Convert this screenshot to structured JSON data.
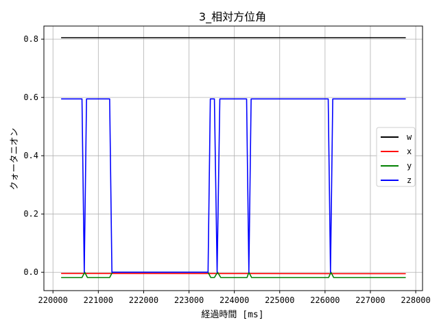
{
  "chart_data": {
    "type": "line",
    "title": "3_相対方位角",
    "xlabel": "経過時間 [ms]",
    "ylabel": "クォータニオン",
    "xlim": [
      219800,
      228150
    ],
    "ylim": [
      -0.063,
      0.845
    ],
    "xticks": [
      220000,
      221000,
      222000,
      223000,
      224000,
      225000,
      226000,
      227000,
      228000
    ],
    "yticks": [
      0.0,
      0.2,
      0.4,
      0.6,
      0.8
    ],
    "ytick_labels": [
      "0.0",
      "0.2",
      "0.4",
      "0.6",
      "0.8"
    ],
    "grid": true,
    "legend_position": "center-right",
    "series": [
      {
        "name": "w",
        "color": "#000000",
        "x": [
          220180,
          227780
        ],
        "y": [
          0.805,
          0.805
        ]
      },
      {
        "name": "x",
        "color": "#ff0000",
        "x": [
          220180,
          227780
        ],
        "y": [
          -0.004,
          -0.005
        ]
      },
      {
        "name": "y",
        "color": "#008000",
        "x": [
          220180,
          220640,
          220700,
          220760,
          221250,
          221310,
          223420,
          223480,
          223560,
          223630,
          223700,
          224280,
          224320,
          224380,
          226080,
          226130,
          226190,
          227780
        ],
        "y": [
          -0.018,
          -0.018,
          0.0,
          -0.018,
          -0.018,
          0.0,
          0.0,
          -0.018,
          -0.018,
          0.0,
          -0.018,
          -0.018,
          0.0,
          -0.018,
          -0.018,
          0.0,
          -0.018,
          -0.018
        ]
      },
      {
        "name": "z",
        "color": "#0000ff",
        "x": [
          220180,
          220640,
          220690,
          220740,
          221250,
          221300,
          223420,
          223470,
          223560,
          223620,
          223680,
          224270,
          224320,
          224370,
          226070,
          226120,
          226170,
          227780
        ],
        "y": [
          0.595,
          0.595,
          0.0,
          0.595,
          0.595,
          0.0,
          0.0,
          0.595,
          0.595,
          0.0,
          0.595,
          0.595,
          0.0,
          0.595,
          0.595,
          0.0,
          0.595,
          0.595
        ]
      }
    ]
  }
}
